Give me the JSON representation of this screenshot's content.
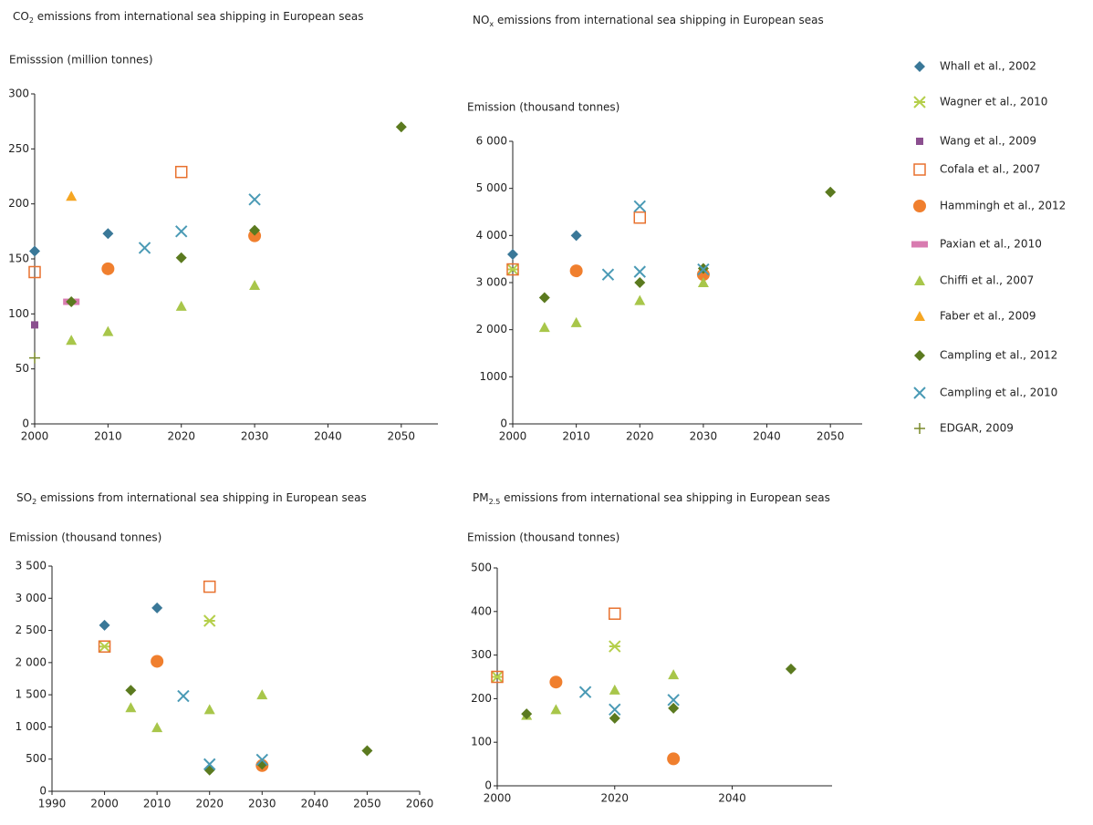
{
  "legend": [
    {
      "name": "Whall et al., 2002",
      "color": "#3a7898",
      "marker": "diamond"
    },
    {
      "name": "Wagner et al., 2010",
      "color": "#b5cf4b",
      "marker": "asterisk"
    },
    {
      "name": "Wang et al., 2009",
      "color": "#8b4f8f",
      "marker": "smallsquare"
    },
    {
      "name": "Cofala et al., 2007",
      "color": "#e8712e",
      "marker": "opensquare"
    },
    {
      "name": "Hammingh et al., 2012",
      "color": "#f07f2e",
      "marker": "circle"
    },
    {
      "name": "Paxian et al., 2010",
      "color": "#d87bb0",
      "marker": "rect"
    },
    {
      "name": "Chiffi et al., 2007",
      "color": "#a8c64a",
      "marker": "triangle"
    },
    {
      "name": "Faber et al., 2009",
      "color": "#f5a623",
      "marker": "triangle"
    },
    {
      "name": "Campling et al., 2012",
      "color": "#5b7a1f",
      "marker": "diamond"
    },
    {
      "name": "Campling et al., 2010",
      "color": "#4a9ab5",
      "marker": "x"
    },
    {
      "name": "EDGAR, 2009",
      "color": "#7a8a2a",
      "marker": "plus"
    }
  ],
  "chart_data": [
    {
      "type": "scatter",
      "title": [
        "CO",
        "2",
        " emissions from international sea shipping in European seas"
      ],
      "y_label": "Emisssion (million tonnes)",
      "xlim": [
        2000,
        2055
      ],
      "xticks": [
        2000,
        2010,
        2020,
        2030,
        2040,
        2050
      ],
      "ylim": [
        0,
        300
      ],
      "yticks": [
        0,
        50,
        100,
        150,
        200,
        250,
        300
      ],
      "series": [
        {
          "x": [
            2000,
            2010
          ],
          "values": [
            157,
            173
          ]
        },
        {
          "x": [],
          "values": []
        },
        {
          "x": [
            2000
          ],
          "values": [
            90
          ]
        },
        {
          "x": [
            2000,
            2020
          ],
          "values": [
            138,
            229
          ]
        },
        {
          "x": [
            2010,
            2030
          ],
          "values": [
            141,
            171
          ]
        },
        {
          "x": [
            2005
          ],
          "values": [
            111
          ]
        },
        {
          "x": [
            2005,
            2010,
            2020,
            2030
          ],
          "values": [
            76,
            84,
            107,
            126
          ]
        },
        {
          "x": [
            2005
          ],
          "values": [
            207
          ]
        },
        {
          "x": [
            2005,
            2020,
            2030,
            2050
          ],
          "values": [
            111,
            151,
            176,
            270
          ]
        },
        {
          "x": [
            2015,
            2020,
            2030
          ],
          "values": [
            160,
            175,
            204
          ]
        },
        {
          "x": [
            2000
          ],
          "values": [
            60
          ]
        }
      ]
    },
    {
      "type": "scatter",
      "title": [
        "NO",
        "x",
        " emissions from international sea shipping in European seas"
      ],
      "y_label": "Emission (thousand tonnes)",
      "xlim": [
        2000,
        2055
      ],
      "xticks": [
        2000,
        2010,
        2020,
        2030,
        2040,
        2050
      ],
      "ylim": [
        0,
        6000
      ],
      "yticks": [
        0,
        {
          "value": 1000,
          "label": "1000"
        },
        {
          "value": 2000,
          "label": "2 000"
        },
        {
          "value": 3000,
          "label": "3 000"
        },
        {
          "value": 4000,
          "label": "4 000"
        },
        {
          "value": 5000,
          "label": "5 000"
        },
        {
          "value": 6000,
          "label": "6 000"
        }
      ],
      "series": [
        {
          "x": [
            2000,
            2010
          ],
          "values": [
            3600,
            4000
          ]
        },
        {
          "x": [
            2000
          ],
          "values": [
            3280
          ]
        },
        {
          "x": [],
          "values": []
        },
        {
          "x": [
            2000,
            2020
          ],
          "values": [
            3280,
            4380
          ]
        },
        {
          "x": [
            2010,
            2030
          ],
          "values": [
            3250,
            3170
          ]
        },
        {
          "x": [],
          "values": []
        },
        {
          "x": [
            2005,
            2010,
            2020,
            2030
          ],
          "values": [
            2050,
            2150,
            2620,
            3000
          ]
        },
        {
          "x": [],
          "values": []
        },
        {
          "x": [
            2005,
            2020,
            2030,
            2050
          ],
          "values": [
            2680,
            3000,
            3300,
            4920
          ]
        },
        {
          "x": [
            2015,
            2020,
            2020,
            2030
          ],
          "values": [
            3170,
            3230,
            4620,
            3280
          ]
        },
        {
          "x": [],
          "values": []
        }
      ]
    },
    {
      "type": "scatter",
      "title": [
        "SO",
        "2",
        " emissions from international sea shipping in European seas"
      ],
      "y_label": "Emission (thousand tonnes)",
      "xlim": [
        1990,
        2060
      ],
      "xticks": [
        1990,
        2000,
        2010,
        2020,
        2030,
        2040,
        2050,
        2060
      ],
      "ylim": [
        0,
        3500
      ],
      "yticks": [
        0,
        500,
        {
          "value": 1000,
          "label": "1 000"
        },
        {
          "value": 1500,
          "label": "1 500"
        },
        {
          "value": 2000,
          "label": "2 000"
        },
        {
          "value": 2500,
          "label": "2 500"
        },
        {
          "value": 3000,
          "label": "3 000"
        },
        {
          "value": 3500,
          "label": "3 500"
        }
      ],
      "series": [
        {
          "x": [
            2000,
            2010
          ],
          "values": [
            2580,
            2850
          ]
        },
        {
          "x": [
            2000,
            2020
          ],
          "values": [
            2250,
            2650
          ]
        },
        {
          "x": [],
          "values": []
        },
        {
          "x": [
            2000,
            2020
          ],
          "values": [
            2250,
            3180
          ]
        },
        {
          "x": [
            2010,
            2030
          ],
          "values": [
            2020,
            400
          ]
        },
        {
          "x": [],
          "values": []
        },
        {
          "x": [
            2005,
            2010,
            2020,
            2030
          ],
          "values": [
            1300,
            990,
            1270,
            1500
          ]
        },
        {
          "x": [],
          "values": []
        },
        {
          "x": [
            2005,
            2020,
            2030,
            2050
          ],
          "values": [
            1570,
            330,
            420,
            630
          ]
        },
        {
          "x": [
            2015,
            2020,
            2030
          ],
          "values": [
            1480,
            420,
            490
          ]
        },
        {
          "x": [],
          "values": []
        }
      ]
    },
    {
      "type": "scatter",
      "title": [
        "PM",
        "2.5",
        " emissions from international sea shipping in European seas"
      ],
      "y_label": "Emission (thousand tonnes)",
      "xlim": [
        2000,
        2057
      ],
      "xticks": [
        2000,
        2020,
        2040
      ],
      "ylim": [
        0,
        500
      ],
      "yticks": [
        0,
        100,
        200,
        300,
        400,
        500
      ],
      "series": [
        {
          "x": [],
          "values": []
        },
        {
          "x": [
            2000,
            2020
          ],
          "values": [
            250,
            320
          ]
        },
        {
          "x": [],
          "values": []
        },
        {
          "x": [
            2000,
            2020
          ],
          "values": [
            250,
            395
          ]
        },
        {
          "x": [
            2010,
            2030
          ],
          "values": [
            238,
            62
          ]
        },
        {
          "x": [],
          "values": []
        },
        {
          "x": [
            2005,
            2010,
            2020,
            2030
          ],
          "values": [
            162,
            175,
            220,
            255
          ]
        },
        {
          "x": [],
          "values": []
        },
        {
          "x": [
            2005,
            2020,
            2030,
            2050
          ],
          "values": [
            165,
            155,
            178,
            268
          ]
        },
        {
          "x": [
            2015,
            2020,
            2030
          ],
          "values": [
            215,
            175,
            197
          ]
        },
        {
          "x": [],
          "values": []
        }
      ]
    }
  ]
}
